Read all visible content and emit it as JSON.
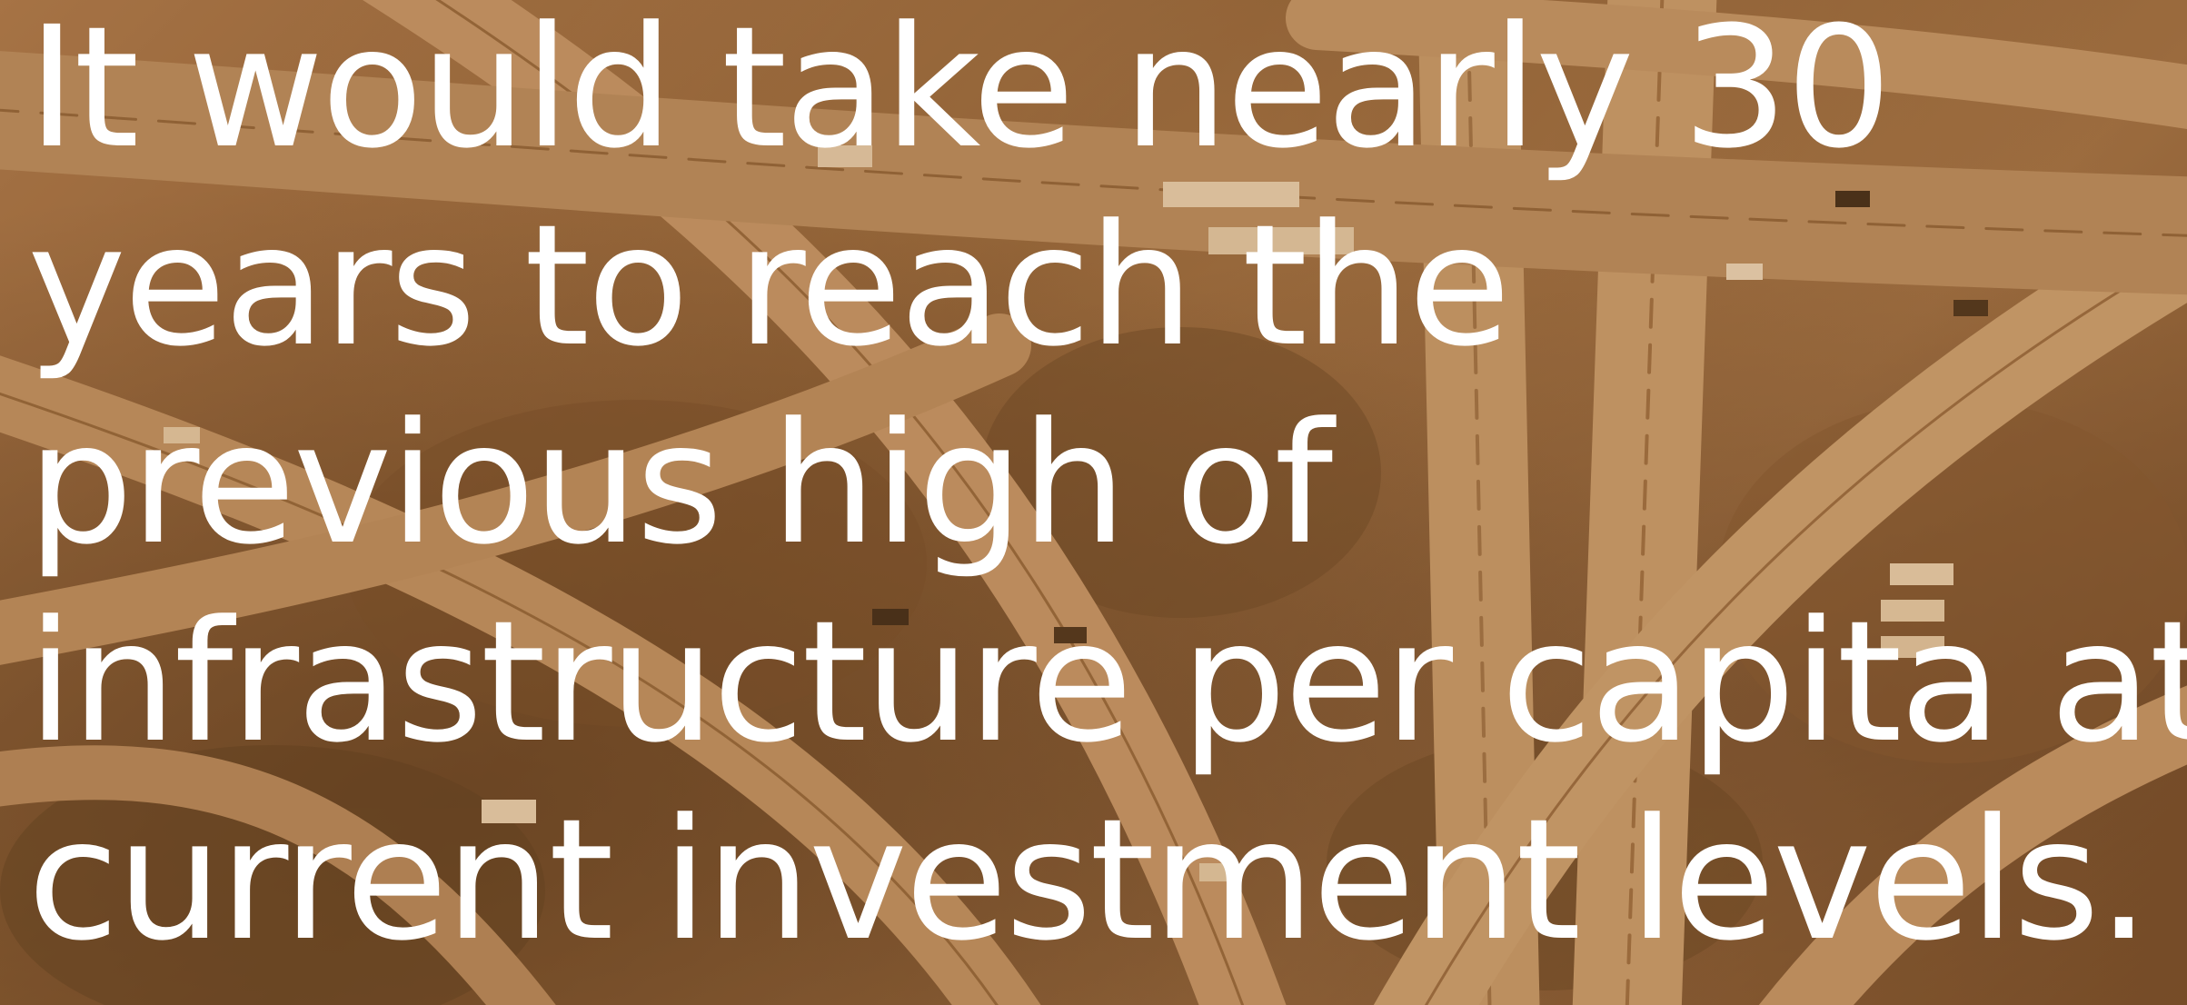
{
  "image": {
    "subject": "aerial-highway-interchange",
    "tint_color": "#a0703f",
    "text_color": "#ffffff"
  },
  "headline": {
    "lines": [
      "It would take nearly 30",
      "years to reach the",
      "previous high of",
      "infrastructure per capita at",
      "current investment levels."
    ]
  }
}
